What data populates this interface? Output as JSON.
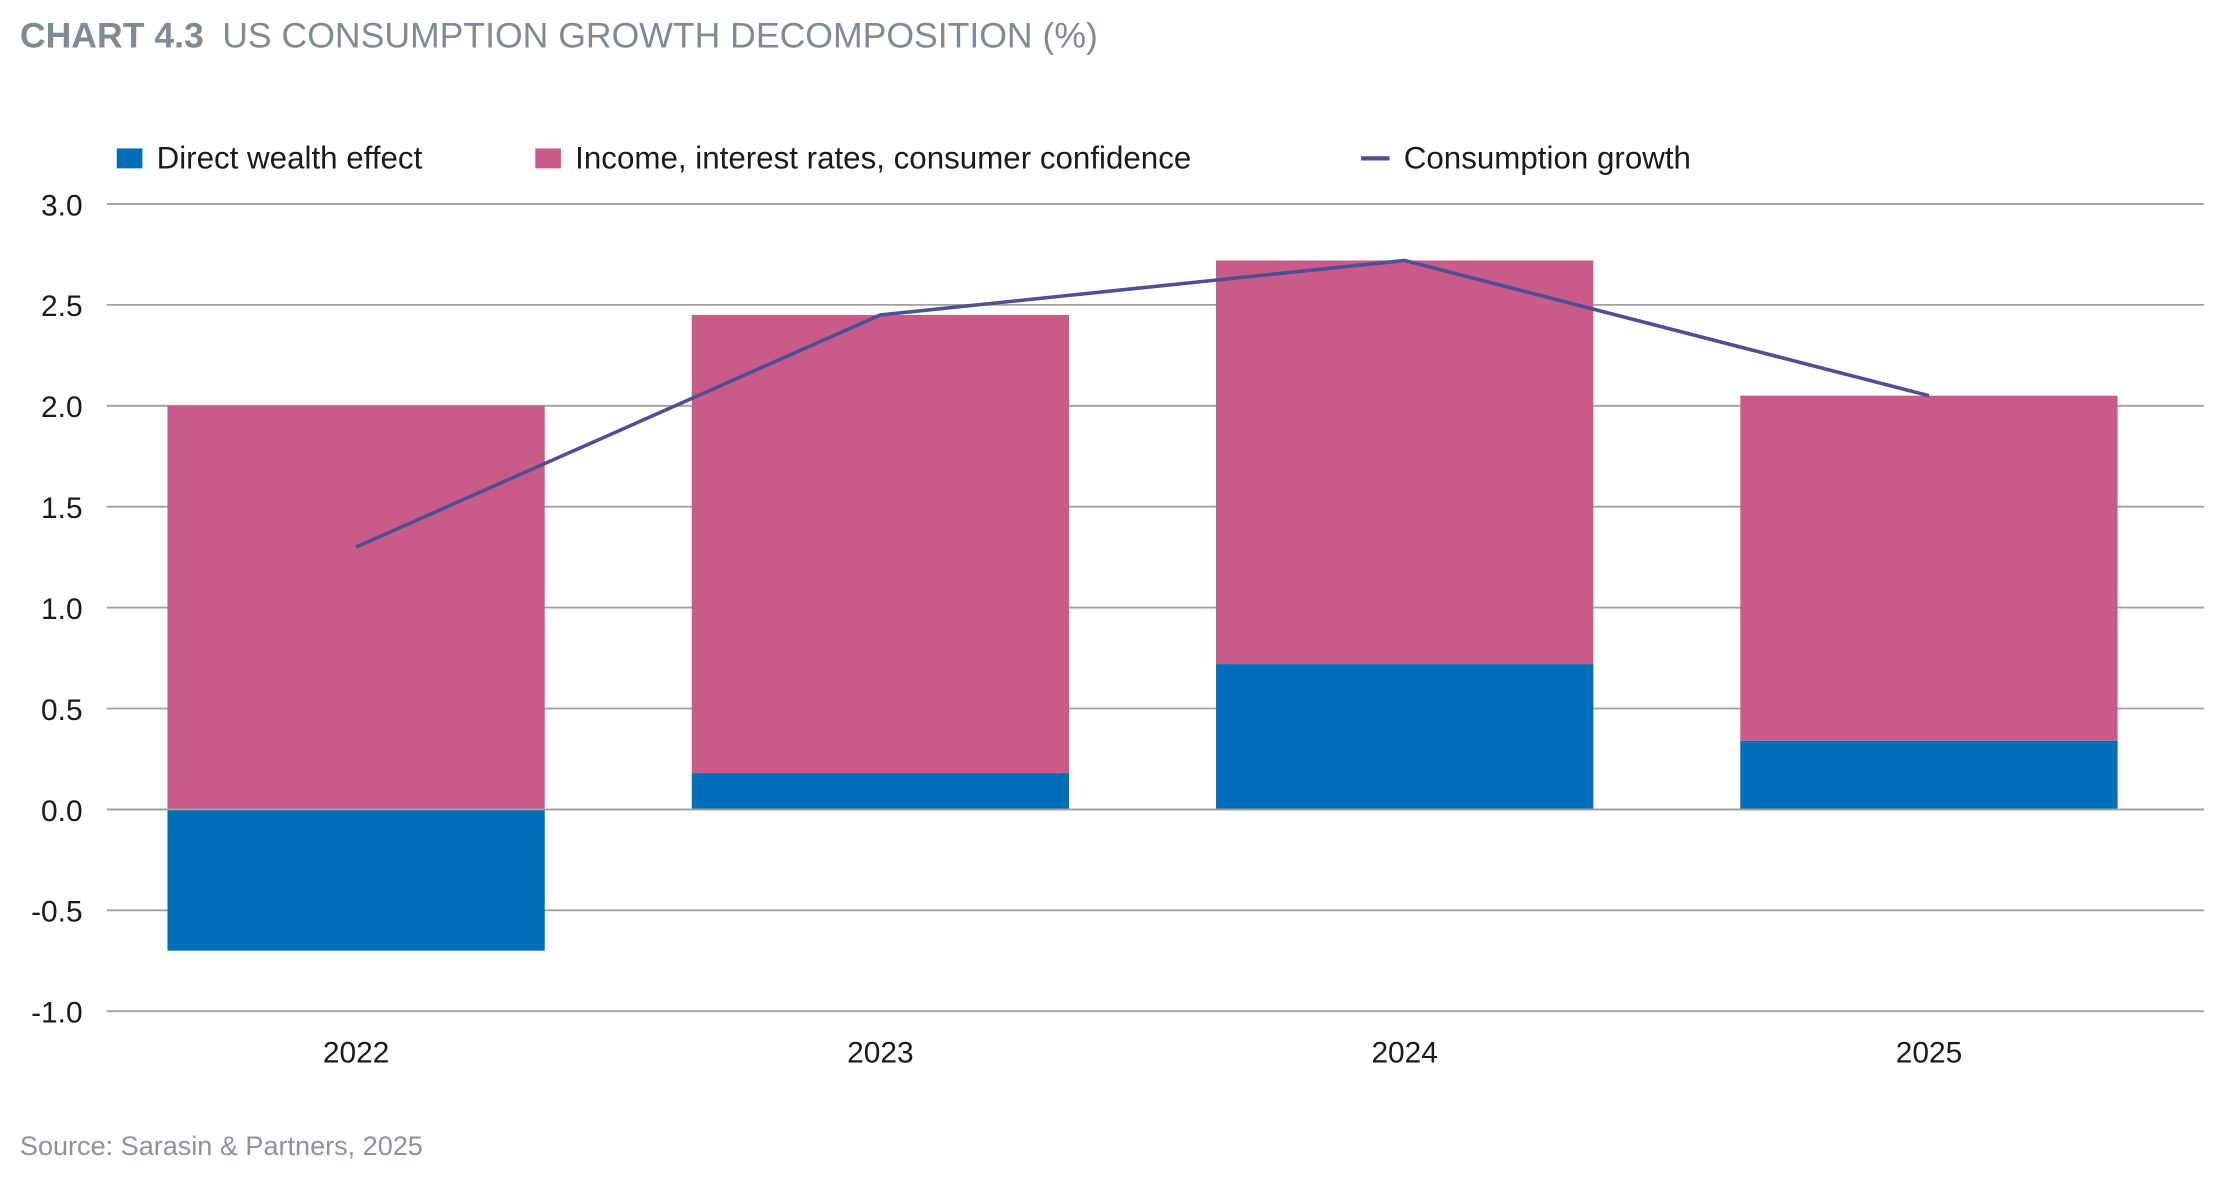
{
  "chart_data": {
    "type": "bar",
    "stacked": true,
    "title_prefix": "CHART 4.3",
    "title": "US CONSUMPTION GROWTH DECOMPOSITION (%)",
    "xlabel": "",
    "ylabel": "",
    "categories": [
      "2022",
      "2023",
      "2024",
      "2025"
    ],
    "ylim": [
      -1.0,
      3.0
    ],
    "yticks": [
      "3.0",
      "2.5",
      "2.0",
      "1.5",
      "1.0",
      "0.5",
      "0.0",
      "-0.5",
      "-1.0"
    ],
    "ytick_values": [
      3.0,
      2.5,
      2.0,
      1.5,
      1.0,
      0.5,
      0.0,
      -0.5,
      -1.0
    ],
    "grid": true,
    "legend_position": "top",
    "series": [
      {
        "name": "Direct wealth effect",
        "type": "bar",
        "color": "#006eb8",
        "values": [
          -0.7,
          0.18,
          0.72,
          0.34
        ]
      },
      {
        "name": "Income, interest rates, consumer confidence",
        "type": "bar",
        "color": "#c95b89",
        "values": [
          2.0,
          2.27,
          2.0,
          1.71
        ]
      },
      {
        "name": "Consumption growth",
        "type": "line",
        "color": "#4f4f96",
        "values": [
          1.3,
          2.45,
          2.72,
          2.05
        ]
      }
    ],
    "source": "Source: Sarasin & Partners, 2025"
  }
}
